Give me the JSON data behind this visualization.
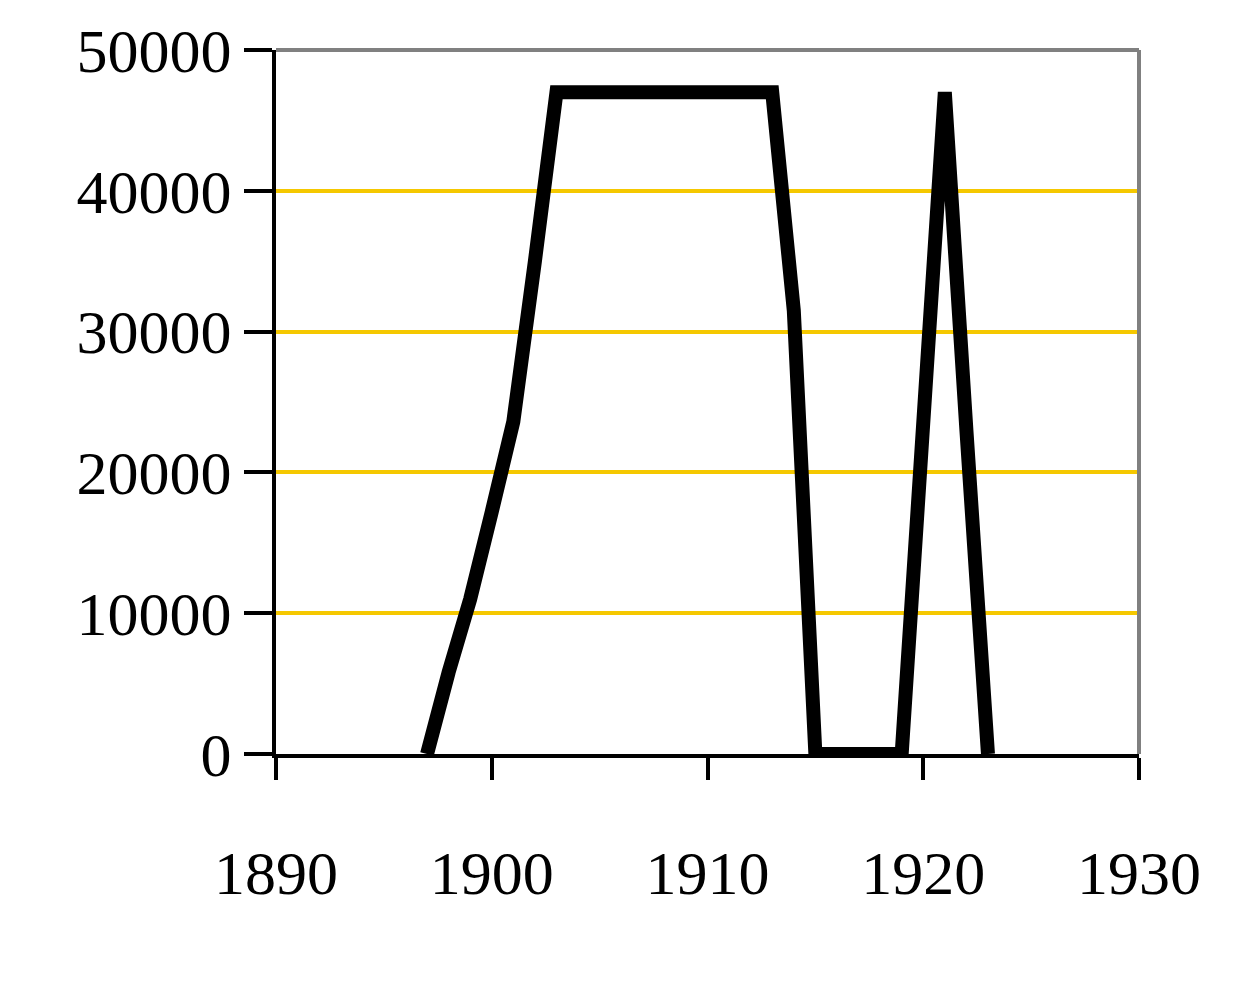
{
  "chart_data": {
    "type": "line",
    "x": [
      1897,
      1898,
      1899,
      1900,
      1901,
      1902,
      1903,
      1913,
      1914,
      1915,
      1919,
      1921,
      1922,
      1923
    ],
    "values": [
      0,
      5800,
      11000,
      17200,
      23600,
      35000,
      47000,
      47000,
      31500,
      0,
      0,
      47000,
      23000,
      0
    ],
    "color": "#000000",
    "xlim": [
      1890,
      1930
    ],
    "xticks": [
      1890,
      1900,
      1910,
      1920,
      1930
    ],
    "ylim": [
      0,
      50000
    ],
    "yticks": [
      0,
      10000,
      20000,
      30000,
      40000,
      50000
    ],
    "grid": "y",
    "marker": "none",
    "line_style": "solid"
  }
}
